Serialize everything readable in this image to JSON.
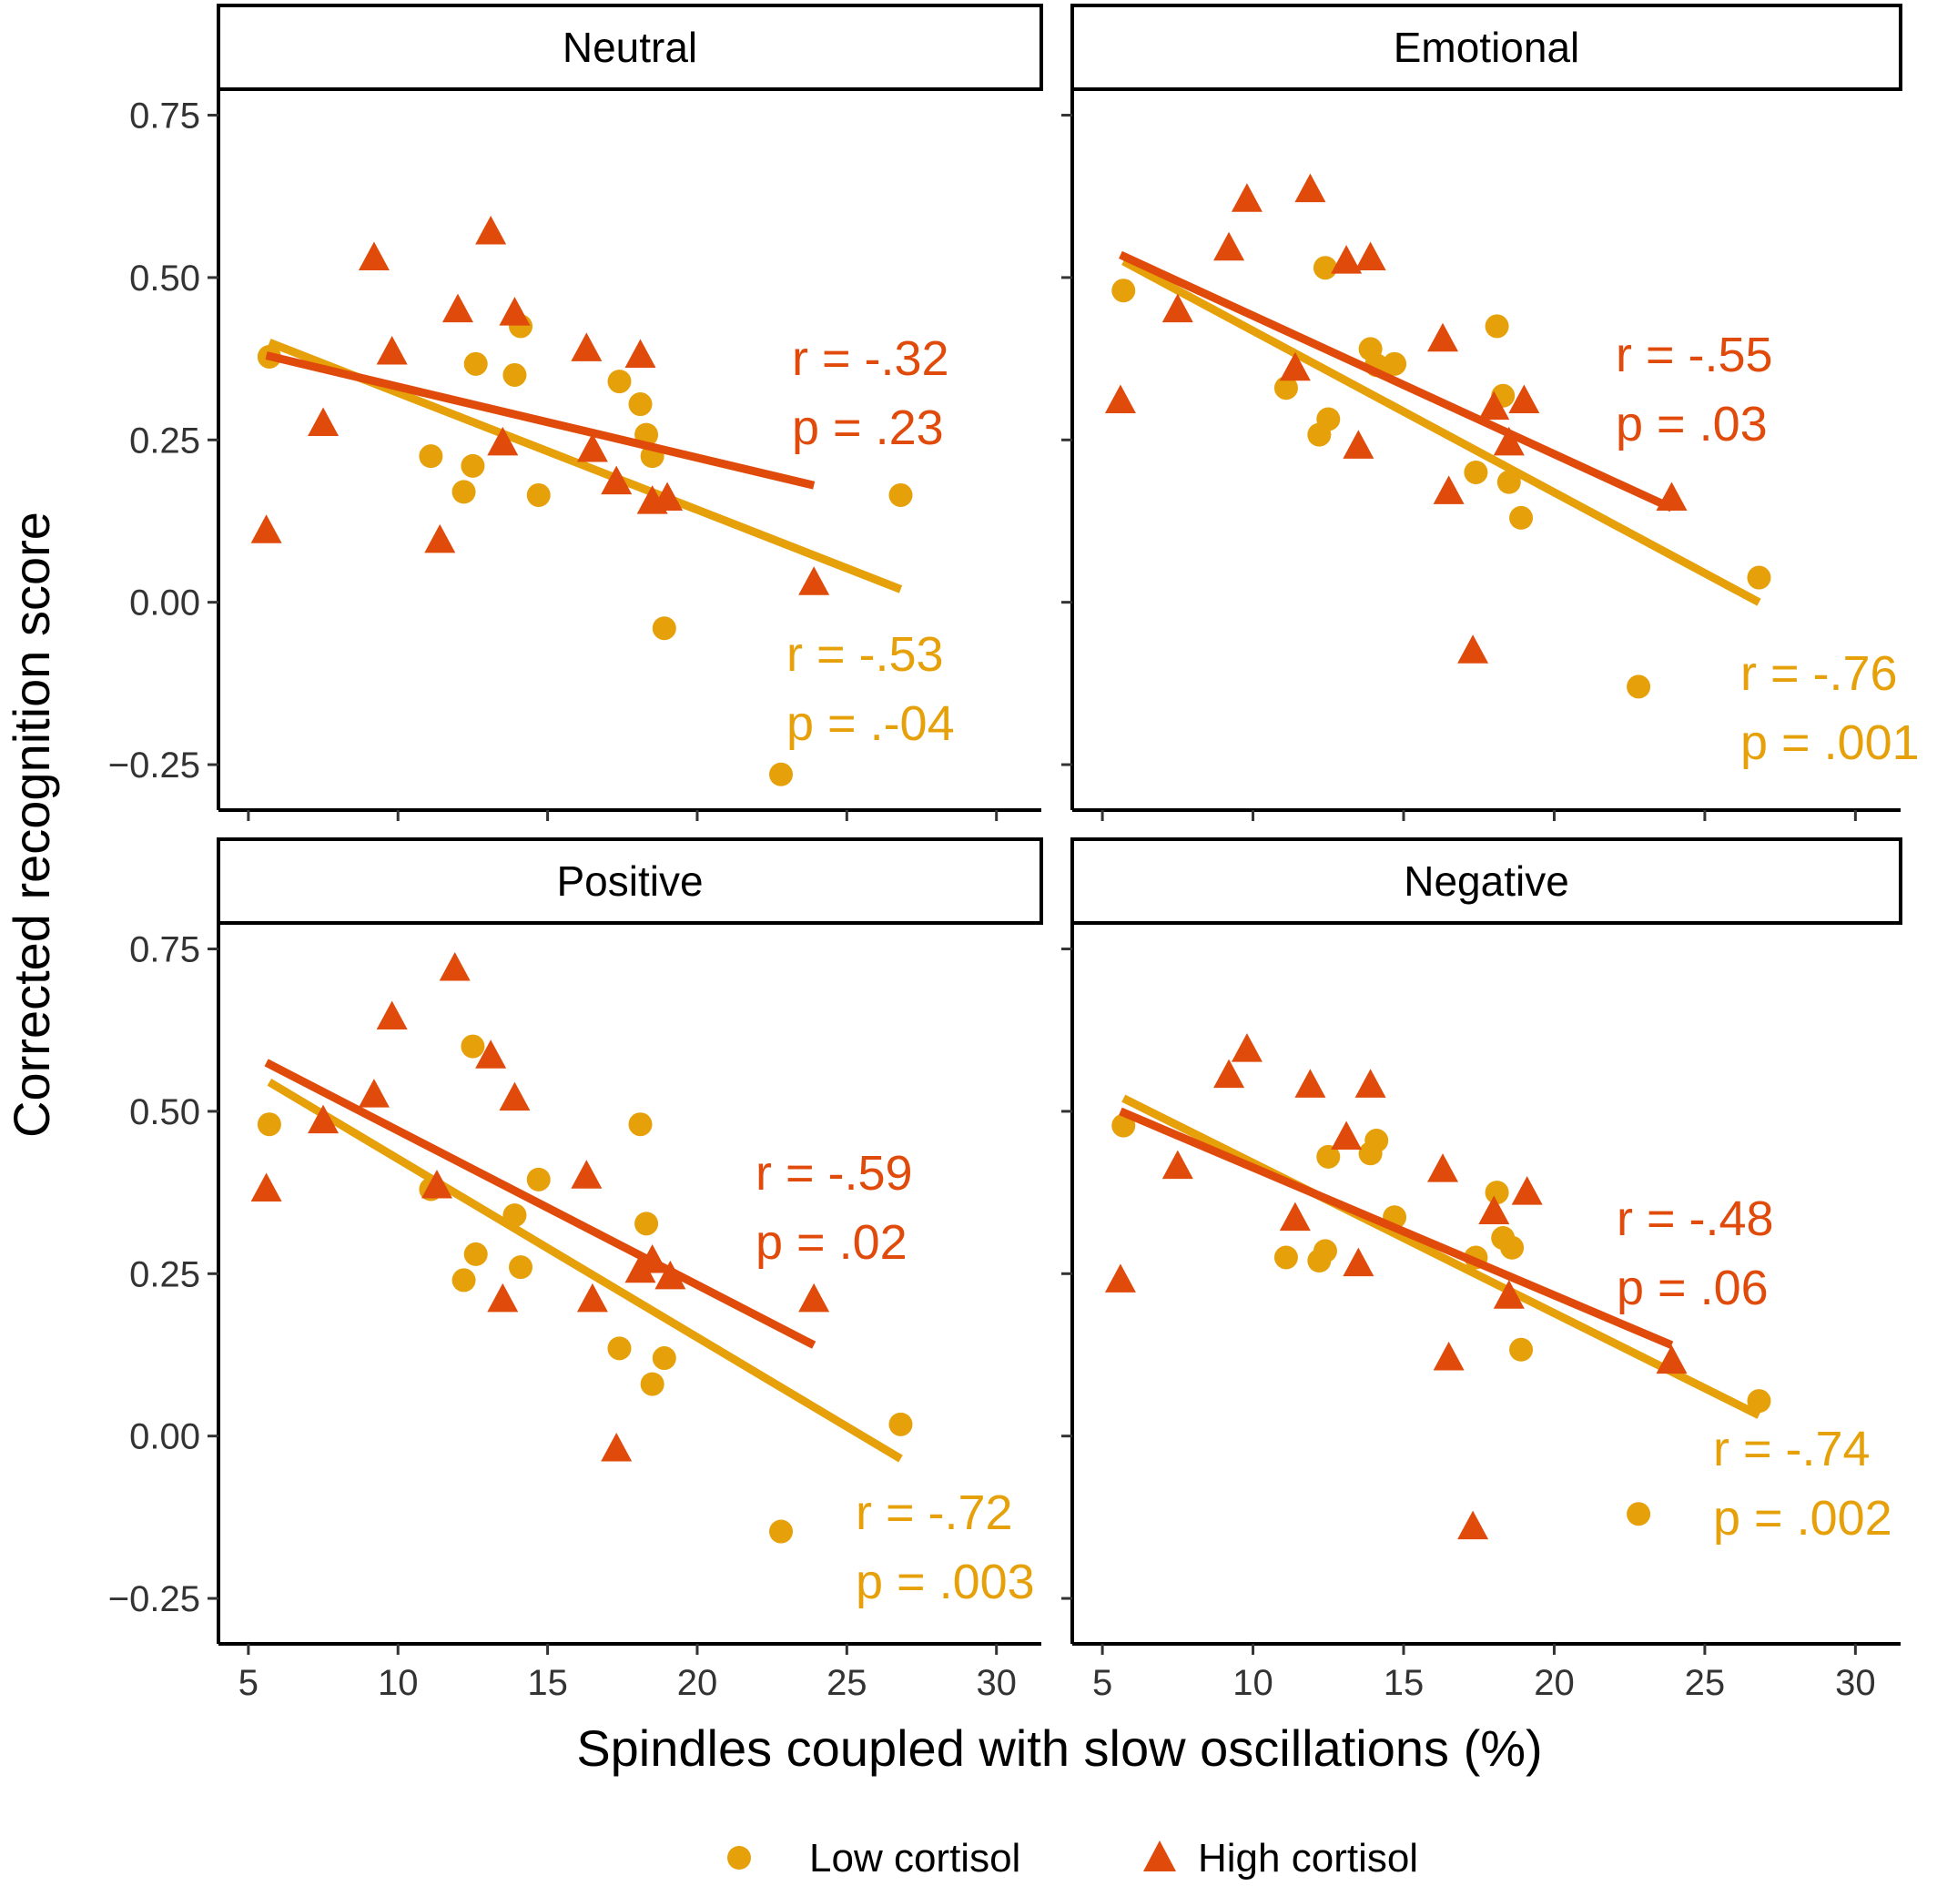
{
  "chart_data": {
    "type": "scatter",
    "facet_layout": "2x2",
    "xlabel": "Spindles coupled with slow oscillations (%)",
    "ylabel": "Corrected recognition score",
    "xlim": [
      4,
      31.5
    ],
    "ylim": [
      -0.32,
      0.79
    ],
    "x_ticks": [
      5,
      10,
      15,
      20,
      25,
      30
    ],
    "x_tick_labels": [
      "5",
      "10",
      "15",
      "20",
      "25",
      "30"
    ],
    "y_ticks": [
      -0.25,
      0,
      0.25,
      0.5,
      0.75
    ],
    "y_tick_labels": [
      "−0.25",
      "0.00",
      "0.25",
      "0.50",
      "0.75"
    ],
    "grid": false,
    "legend": {
      "position": "bottom",
      "entries": [
        {
          "label": "Low cortisol",
          "shape": "circle",
          "color": "#E6A00A"
        },
        {
          "label": "High cortisol",
          "shape": "triangle",
          "color": "#E04A0A"
        }
      ]
    },
    "panels": [
      {
        "title": "Neutral",
        "series": [
          {
            "name": "Low cortisol",
            "color": "#E6A00A",
            "points": [
              [
                5.7,
                0.378
              ],
              [
                11.1,
                0.225
              ],
              [
                12.2,
                0.17
              ],
              [
                12.5,
                0.21
              ],
              [
                12.6,
                0.367
              ],
              [
                13.9,
                0.35
              ],
              [
                14.1,
                0.425
              ],
              [
                14.7,
                0.165
              ],
              [
                17.4,
                0.34
              ],
              [
                18.1,
                0.305
              ],
              [
                18.3,
                0.258
              ],
              [
                18.5,
                0.225
              ],
              [
                18.9,
                -0.04
              ],
              [
                22.8,
                -0.265
              ],
              [
                26.8,
                0.165
              ]
            ],
            "fit": [
              [
                5.7,
                0.4
              ],
              [
                26.8,
                0.02
              ]
            ],
            "annotation": {
              "r_label": "r = -.53",
              "p_label": "p = .-04"
            }
          },
          {
            "name": "High cortisol",
            "color": "#E04A0A",
            "points": [
              [
                5.6,
                0.11
              ],
              [
                7.5,
                0.275
              ],
              [
                9.2,
                0.53
              ],
              [
                9.8,
                0.385
              ],
              [
                11.4,
                0.095
              ],
              [
                12.0,
                0.45
              ],
              [
                13.1,
                0.57
              ],
              [
                13.5,
                0.245
              ],
              [
                13.9,
                0.445
              ],
              [
                16.3,
                0.39
              ],
              [
                16.5,
                0.235
              ],
              [
                17.3,
                0.185
              ],
              [
                18.1,
                0.38
              ],
              [
                18.5,
                0.155
              ],
              [
                19.0,
                0.16
              ],
              [
                23.9,
                0.03
              ]
            ],
            "fit": [
              [
                5.6,
                0.38
              ],
              [
                23.9,
                0.18
              ]
            ],
            "annotation": {
              "r_label": "r = -.32",
              "p_label": "p = .23"
            }
          }
        ]
      },
      {
        "title": "Emotional",
        "series": [
          {
            "name": "Low cortisol",
            "color": "#E6A00A",
            "points": [
              [
                5.7,
                0.48
              ],
              [
                11.1,
                0.33
              ],
              [
                12.2,
                0.258
              ],
              [
                12.4,
                0.515
              ],
              [
                12.5,
                0.282
              ],
              [
                13.9,
                0.39
              ],
              [
                14.1,
                0.365
              ],
              [
                14.7,
                0.367
              ],
              [
                17.4,
                0.2
              ],
              [
                18.1,
                0.425
              ],
              [
                18.3,
                0.318
              ],
              [
                18.5,
                0.185
              ],
              [
                18.9,
                0.13
              ],
              [
                22.8,
                -0.13
              ],
              [
                26.8,
                0.038
              ]
            ],
            "fit": [
              [
                5.7,
                0.525
              ],
              [
                26.8,
                0.0
              ]
            ],
            "annotation": {
              "r_label": "r = -.76",
              "p_label": "p = .001"
            }
          },
          {
            "name": "High cortisol",
            "color": "#E04A0A",
            "points": [
              [
                5.6,
                0.31
              ],
              [
                7.5,
                0.45
              ],
              [
                9.2,
                0.545
              ],
              [
                9.8,
                0.62
              ],
              [
                11.4,
                0.36
              ],
              [
                11.9,
                0.635
              ],
              [
                13.1,
                0.525
              ],
              [
                13.5,
                0.24
              ],
              [
                13.9,
                0.53
              ],
              [
                16.3,
                0.405
              ],
              [
                16.5,
                0.17
              ],
              [
                17.3,
                -0.075
              ],
              [
                18.0,
                0.3
              ],
              [
                18.5,
                0.245
              ],
              [
                19.0,
                0.31
              ],
              [
                23.9,
                0.16
              ]
            ],
            "fit": [
              [
                5.6,
                0.535
              ],
              [
                23.9,
                0.145
              ]
            ],
            "annotation": {
              "r_label": "r = -.55",
              "p_label": "p = .03"
            }
          }
        ]
      },
      {
        "title": "Positive",
        "series": [
          {
            "name": "Low cortisol",
            "color": "#E6A00A",
            "points": [
              [
                5.7,
                0.48
              ],
              [
                11.1,
                0.38
              ],
              [
                12.2,
                0.24
              ],
              [
                12.5,
                0.6
              ],
              [
                12.6,
                0.28
              ],
              [
                13.9,
                0.34
              ],
              [
                14.1,
                0.26
              ],
              [
                14.7,
                0.395
              ],
              [
                17.4,
                0.135
              ],
              [
                18.1,
                0.48
              ],
              [
                18.3,
                0.327
              ],
              [
                18.5,
                0.08
              ],
              [
                18.9,
                0.12
              ],
              [
                22.8,
                -0.147
              ],
              [
                26.8,
                0.018
              ]
            ],
            "fit": [
              [
                5.7,
                0.545
              ],
              [
                26.8,
                -0.035
              ]
            ],
            "annotation": {
              "r_label": "r = -.72",
              "p_label": "p = .003"
            }
          },
          {
            "name": "High cortisol",
            "color": "#E04A0A",
            "points": [
              [
                5.6,
                0.38
              ],
              [
                7.5,
                0.485
              ],
              [
                9.2,
                0.525
              ],
              [
                9.8,
                0.645
              ],
              [
                11.3,
                0.385
              ],
              [
                11.9,
                0.72
              ],
              [
                13.1,
                0.585
              ],
              [
                13.5,
                0.21
              ],
              [
                13.9,
                0.52
              ],
              [
                16.3,
                0.4
              ],
              [
                16.5,
                0.21
              ],
              [
                17.3,
                -0.02
              ],
              [
                18.1,
                0.255
              ],
              [
                18.5,
                0.27
              ],
              [
                19.1,
                0.245
              ],
              [
                23.9,
                0.21
              ]
            ],
            "fit": [
              [
                5.6,
                0.575
              ],
              [
                23.9,
                0.14
              ]
            ],
            "annotation": {
              "r_label": "r = -.59",
              "p_label": "p = .02"
            }
          }
        ]
      },
      {
        "title": "Negative",
        "series": [
          {
            "name": "Low cortisol",
            "color": "#E6A00A",
            "points": [
              [
                5.7,
                0.478
              ],
              [
                11.1,
                0.275
              ],
              [
                12.2,
                0.27
              ],
              [
                12.4,
                0.285
              ],
              [
                12.5,
                0.43
              ],
              [
                13.9,
                0.435
              ],
              [
                14.1,
                0.455
              ],
              [
                14.7,
                0.337
              ],
              [
                17.4,
                0.275
              ],
              [
                18.1,
                0.375
              ],
              [
                18.3,
                0.305
              ],
              [
                18.6,
                0.29
              ],
              [
                18.9,
                0.133
              ],
              [
                22.8,
                -0.12
              ],
              [
                26.8,
                0.054
              ]
            ],
            "fit": [
              [
                5.7,
                0.52
              ],
              [
                26.8,
                0.032
              ]
            ],
            "annotation": {
              "r_label": "r = -.74",
              "p_label": "p = .002"
            }
          },
          {
            "name": "High cortisol",
            "color": "#E04A0A",
            "points": [
              [
                5.6,
                0.24
              ],
              [
                7.5,
                0.415
              ],
              [
                9.2,
                0.555
              ],
              [
                9.8,
                0.595
              ],
              [
                11.4,
                0.335
              ],
              [
                11.9,
                0.54
              ],
              [
                13.1,
                0.46
              ],
              [
                13.5,
                0.265
              ],
              [
                13.9,
                0.54
              ],
              [
                16.3,
                0.41
              ],
              [
                16.5,
                0.12
              ],
              [
                17.3,
                -0.14
              ],
              [
                18.0,
                0.345
              ],
              [
                18.5,
                0.215
              ],
              [
                19.1,
                0.375
              ],
              [
                23.9,
                0.115
              ]
            ],
            "fit": [
              [
                5.6,
                0.5
              ],
              [
                23.9,
                0.14
              ]
            ],
            "annotation": {
              "r_label": "r = -.48",
              "p_label": "p = .06"
            }
          }
        ]
      }
    ]
  }
}
